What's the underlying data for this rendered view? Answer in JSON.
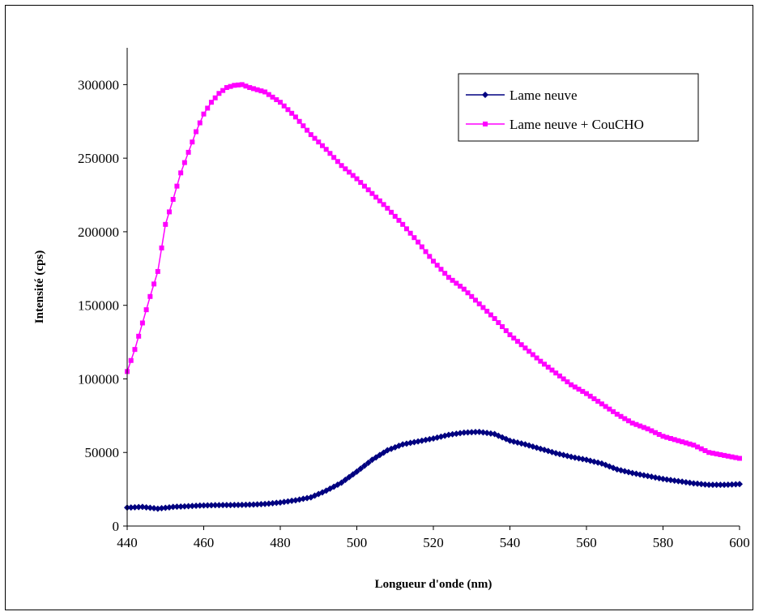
{
  "chart_data": {
    "type": "line",
    "xlabel": "Longueur d'onde (nm)",
    "ylabel": "Intensité (cps)",
    "xlim": [
      440,
      600
    ],
    "ylim": [
      0,
      325000
    ],
    "x_ticks": [
      440,
      460,
      480,
      500,
      520,
      540,
      560,
      580,
      600
    ],
    "y_ticks": [
      0,
      50000,
      100000,
      150000,
      200000,
      250000,
      300000
    ],
    "grid": false,
    "legend_position": "top-right",
    "series": [
      {
        "name": "Lame neuve",
        "color": "#000080",
        "marker": "diamond",
        "points": [
          [
            440,
            12500
          ],
          [
            444,
            13000
          ],
          [
            448,
            11800
          ],
          [
            452,
            13000
          ],
          [
            456,
            13500
          ],
          [
            460,
            14000
          ],
          [
            464,
            14200
          ],
          [
            468,
            14300
          ],
          [
            472,
            14500
          ],
          [
            476,
            15000
          ],
          [
            480,
            16000
          ],
          [
            484,
            17500
          ],
          [
            488,
            19500
          ],
          [
            492,
            24000
          ],
          [
            496,
            29500
          ],
          [
            500,
            37000
          ],
          [
            504,
            45000
          ],
          [
            508,
            51500
          ],
          [
            512,
            55500
          ],
          [
            516,
            57500
          ],
          [
            520,
            59500
          ],
          [
            524,
            62000
          ],
          [
            528,
            63500
          ],
          [
            532,
            64000
          ],
          [
            536,
            62500
          ],
          [
            540,
            58000
          ],
          [
            544,
            55500
          ],
          [
            548,
            52500
          ],
          [
            552,
            49500
          ],
          [
            556,
            47000
          ],
          [
            560,
            45000
          ],
          [
            564,
            42500
          ],
          [
            568,
            38500
          ],
          [
            572,
            36000
          ],
          [
            576,
            34000
          ],
          [
            580,
            32000
          ],
          [
            584,
            30500
          ],
          [
            588,
            29000
          ],
          [
            592,
            28000
          ],
          [
            596,
            28000
          ],
          [
            600,
            28500
          ]
        ]
      },
      {
        "name": "Lame neuve + CouCHO",
        "color": "#ff00ff",
        "marker": "square",
        "points": [
          [
            440,
            105000
          ],
          [
            442,
            120000
          ],
          [
            444,
            138000
          ],
          [
            446,
            156000
          ],
          [
            448,
            173000
          ],
          [
            450,
            205000
          ],
          [
            452,
            222000
          ],
          [
            454,
            240000
          ],
          [
            456,
            254000
          ],
          [
            458,
            268000
          ],
          [
            460,
            280000
          ],
          [
            462,
            288000
          ],
          [
            464,
            294000
          ],
          [
            466,
            298000
          ],
          [
            468,
            299500
          ],
          [
            470,
            300000
          ],
          [
            472,
            298000
          ],
          [
            474,
            296500
          ],
          [
            476,
            295000
          ],
          [
            480,
            288000
          ],
          [
            484,
            278000
          ],
          [
            488,
            266000
          ],
          [
            492,
            256000
          ],
          [
            496,
            245000
          ],
          [
            500,
            236000
          ],
          [
            504,
            226000
          ],
          [
            508,
            216000
          ],
          [
            512,
            205000
          ],
          [
            516,
            193000
          ],
          [
            520,
            180000
          ],
          [
            524,
            169000
          ],
          [
            528,
            161000
          ],
          [
            532,
            151000
          ],
          [
            536,
            141000
          ],
          [
            540,
            130000
          ],
          [
            544,
            121000
          ],
          [
            548,
            112000
          ],
          [
            552,
            104000
          ],
          [
            556,
            96000
          ],
          [
            560,
            90000
          ],
          [
            564,
            83000
          ],
          [
            568,
            76000
          ],
          [
            572,
            70000
          ],
          [
            576,
            66000
          ],
          [
            580,
            61000
          ],
          [
            584,
            58000
          ],
          [
            588,
            55000
          ],
          [
            592,
            50000
          ],
          [
            596,
            48000
          ],
          [
            600,
            46000
          ]
        ]
      }
    ]
  }
}
